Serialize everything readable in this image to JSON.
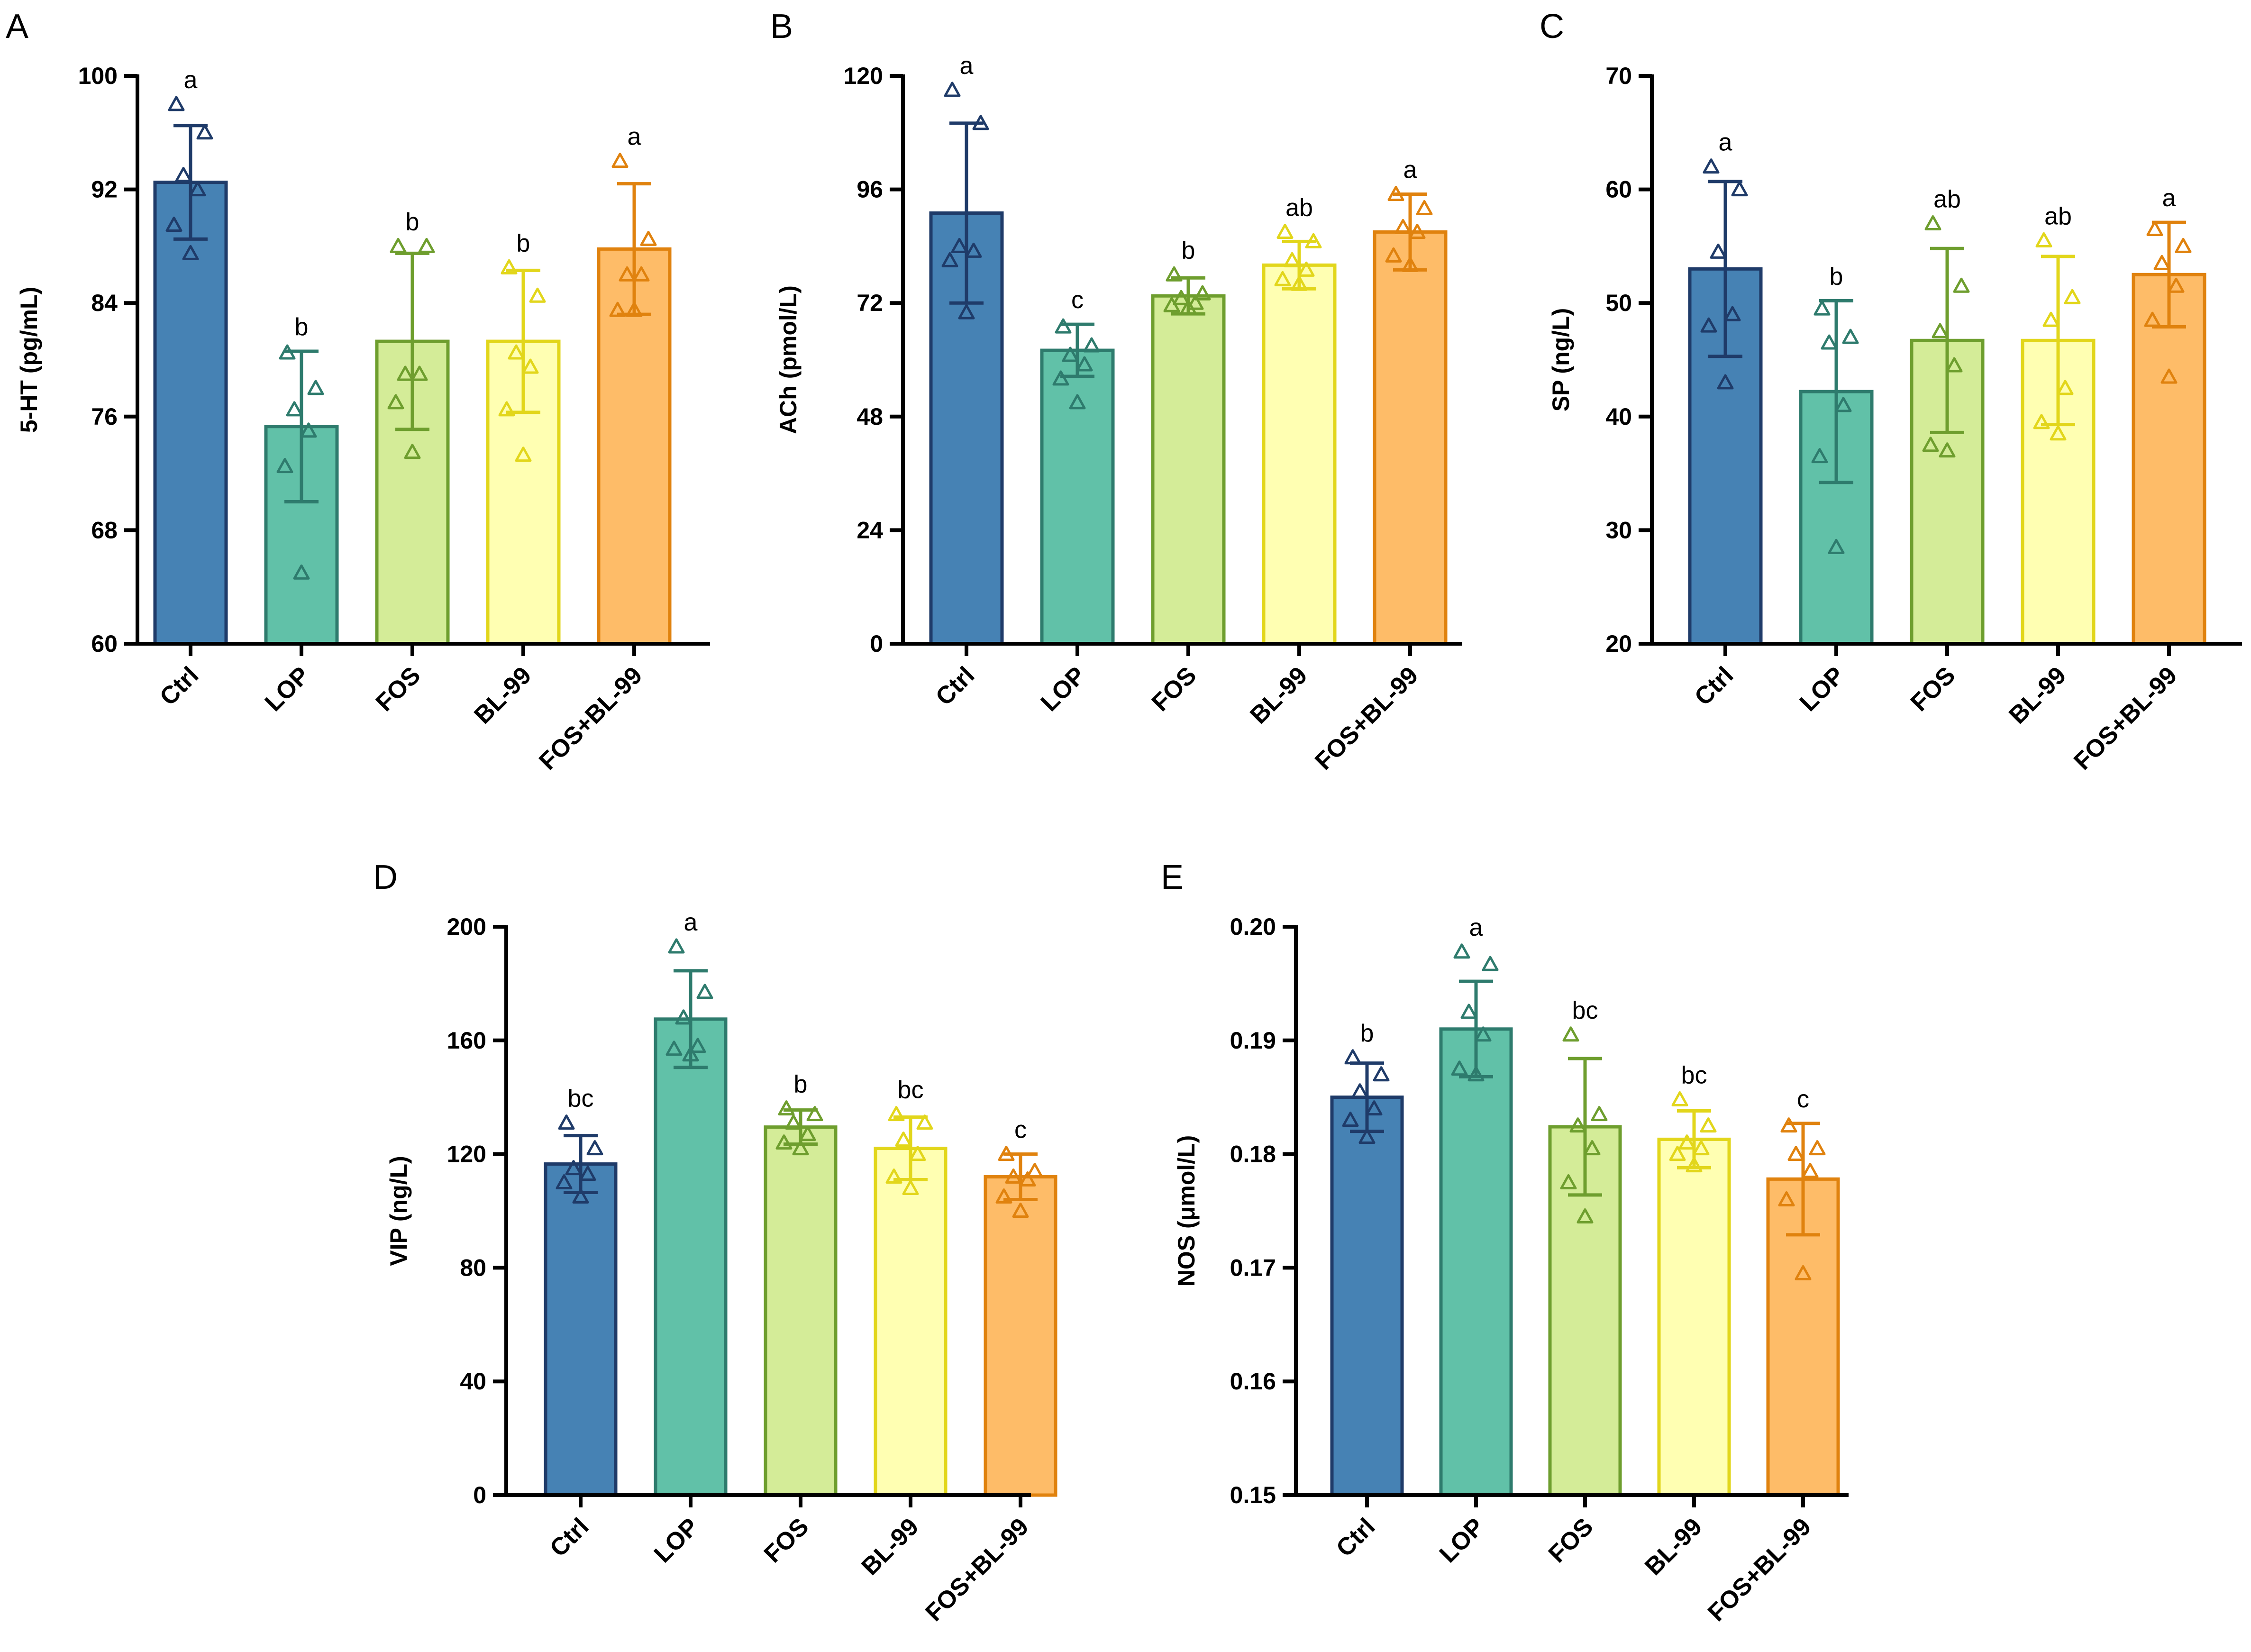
{
  "figure": {
    "categories": [
      "Ctrl",
      "LOP",
      "FOS",
      "BL-99",
      "FOS+BL-99"
    ],
    "colors": {
      "fills": [
        "#4682B4",
        "#61C1A8",
        "#D4EC98",
        "#FFFFB2",
        "#FEBC68"
      ],
      "strokes": [
        "#1F3B69",
        "#2E7B6D",
        "#6E9E2E",
        "#E2D61B",
        "#E0820E"
      ],
      "axis": "#000000"
    }
  },
  "chart_data": [
    {
      "panel_label": "A",
      "type": "bar",
      "ylabel": "5-HT (pg/mL)",
      "ylim": [
        60,
        100
      ],
      "yticks": [
        60,
        68,
        76,
        84,
        92,
        100
      ],
      "tick_labels": [
        "60",
        "68",
        "76",
        "84",
        "92",
        "100"
      ],
      "categories": [
        "Ctrl",
        "LOP",
        "FOS",
        "BL-99",
        "FOS+BL-99"
      ],
      "values": [
        92.5,
        75.3,
        81.3,
        81.3,
        87.8
      ],
      "errors": [
        4.0,
        5.3,
        6.2,
        5.0,
        4.6
      ],
      "points": [
        [
          98,
          96,
          93,
          92,
          89.5,
          87.5
        ],
        [
          80.5,
          78,
          76.5,
          75,
          72.5,
          65
        ],
        [
          88,
          88,
          79,
          79,
          77,
          73.5
        ],
        [
          86.5,
          84.5,
          80.5,
          79.5,
          76.5,
          73.3
        ],
        [
          94,
          88.5,
          86,
          86,
          83.5,
          83.5
        ]
      ],
      "significance": [
        "a",
        "b",
        "b",
        "b",
        "a"
      ]
    },
    {
      "panel_label": "B",
      "type": "bar",
      "ylabel": "ACh (pmol/L)",
      "ylim": [
        0,
        120
      ],
      "yticks": [
        0,
        24,
        48,
        72,
        96,
        120
      ],
      "tick_labels": [
        "0",
        "24",
        "48",
        "72",
        "96",
        "120"
      ],
      "categories": [
        "Ctrl",
        "LOP",
        "FOS",
        "BL-99",
        "FOS+BL-99"
      ],
      "values": [
        91,
        62,
        73.5,
        80,
        87
      ],
      "errors": [
        19,
        5.5,
        3.8,
        5,
        8
      ],
      "points": [
        [
          117,
          110,
          84,
          83,
          81,
          70
        ],
        [
          67,
          63,
          61,
          59,
          56,
          51
        ],
        [
          78,
          74,
          73,
          72,
          71.5,
          71
        ],
        [
          87,
          85,
          81,
          79,
          77,
          76
        ],
        [
          95,
          92,
          88,
          87,
          82,
          80
        ]
      ],
      "significance": [
        "a",
        "c",
        "b",
        "ab",
        "a"
      ]
    },
    {
      "panel_label": "C",
      "type": "bar",
      "ylabel": "SP (ng/L)",
      "ylim": [
        20,
        70
      ],
      "yticks": [
        20,
        30,
        40,
        50,
        60,
        70
      ],
      "tick_labels": [
        "20",
        "30",
        "40",
        "50",
        "60",
        "70"
      ],
      "categories": [
        "Ctrl",
        "LOP",
        "FOS",
        "BL-99",
        "FOS+BL-99"
      ],
      "values": [
        53,
        42.2,
        46.7,
        46.7,
        52.5
      ],
      "errors": [
        7.7,
        8.0,
        8.1,
        7.4,
        4.6
      ],
      "points": [
        [
          62,
          60,
          54.5,
          49,
          48,
          43
        ],
        [
          49.5,
          47,
          46.5,
          41,
          36.5,
          28.5
        ],
        [
          57,
          51.5,
          47.5,
          44.5,
          37.5,
          37
        ],
        [
          55.5,
          50.5,
          48.5,
          42.5,
          39.5,
          38.5
        ],
        [
          56.5,
          55,
          53.5,
          51.5,
          48.5,
          43.5
        ]
      ],
      "significance": [
        "a",
        "b",
        "ab",
        "ab",
        "a"
      ]
    },
    {
      "panel_label": "D",
      "type": "bar",
      "ylabel": "VIP (ng/L)",
      "ylim": [
        0,
        200
      ],
      "yticks": [
        0,
        40,
        80,
        120,
        160,
        200
      ],
      "tick_labels": [
        "0",
        "40",
        "80",
        "120",
        "160",
        "200"
      ],
      "categories": [
        "Ctrl",
        "LOP",
        "FOS",
        "BL-99",
        "FOS+BL-99"
      ],
      "values": [
        116.5,
        167.5,
        129.5,
        122,
        112
      ],
      "errors": [
        10,
        17,
        6,
        11,
        8
      ],
      "points": [
        [
          131,
          122,
          115,
          113,
          110,
          105
        ],
        [
          193,
          177,
          168,
          158,
          157,
          155
        ],
        [
          136,
          134,
          131,
          127,
          124,
          122
        ],
        [
          134,
          131,
          125,
          120,
          112,
          108
        ],
        [
          120,
          114,
          112,
          111,
          105,
          100
        ]
      ],
      "significance": [
        "bc",
        "a",
        "b",
        "bc",
        "c"
      ]
    },
    {
      "panel_label": "E",
      "type": "bar",
      "ylabel": "NOS (μmol/L)",
      "ylim": [
        0.15,
        0.2
      ],
      "yticks": [
        0.15,
        0.16,
        0.17,
        0.18,
        0.19,
        0.2
      ],
      "tick_labels": [
        "0.15",
        "0.16",
        "0.17",
        "0.18",
        "0.19",
        "0.20"
      ],
      "categories": [
        "Ctrl",
        "LOP",
        "FOS",
        "BL-99",
        "FOS+BL-99"
      ],
      "values": [
        0.185,
        0.191,
        0.1824,
        0.1813,
        0.1778
      ],
      "errors": [
        0.003,
        0.0042,
        0.006,
        0.0025,
        0.0049
      ],
      "points": [
        [
          0.1885,
          0.187,
          0.1855,
          0.184,
          0.183,
          0.1815
        ],
        [
          0.1978,
          0.1967,
          0.1925,
          0.1905,
          0.1875,
          0.187
        ],
        [
          0.1905,
          0.1835,
          0.1825,
          0.1805,
          0.1775,
          0.1745
        ],
        [
          0.1848,
          0.1825,
          0.181,
          0.1805,
          0.18,
          0.179
        ],
        [
          0.1825,
          0.1805,
          0.18,
          0.1785,
          0.176,
          0.1695
        ]
      ],
      "significance": [
        "b",
        "a",
        "bc",
        "bc",
        "c"
      ]
    }
  ]
}
